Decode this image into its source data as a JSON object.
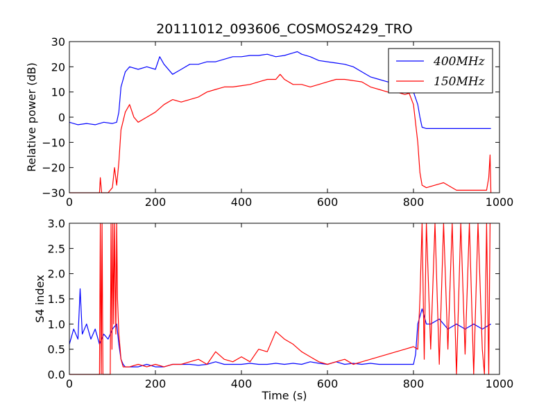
{
  "figure": {
    "title": "20111012_093606_COSMOS2429_TRO",
    "colors": {
      "series_400": "#0000ff",
      "series_150": "#ff0000",
      "axes": "#000000"
    }
  },
  "chart_data": [
    {
      "type": "line",
      "title": "20111012_093606_COSMOS2429_TRO",
      "xlabel": "",
      "ylabel": "Relative power (dB)",
      "xlim": [
        0,
        1000
      ],
      "ylim": [
        -30,
        30
      ],
      "xticks": [
        "0",
        "200",
        "400",
        "600",
        "800",
        "1000"
      ],
      "yticks": [
        "−30",
        "−20",
        "−10",
        "0",
        "10",
        "20",
        "30"
      ],
      "grid": false,
      "legend": "top-right",
      "series": [
        {
          "name": "400MHz",
          "color": "#0000ff",
          "x": [
            0,
            20,
            40,
            60,
            80,
            100,
            110,
            115,
            120,
            130,
            140,
            160,
            180,
            200,
            210,
            220,
            240,
            260,
            280,
            300,
            320,
            340,
            360,
            380,
            400,
            420,
            440,
            460,
            480,
            500,
            520,
            530,
            540,
            560,
            580,
            600,
            620,
            640,
            660,
            680,
            700,
            720,
            740,
            760,
            780,
            800,
            810,
            815,
            820,
            830,
            850,
            880,
            920,
            950,
            980
          ],
          "y": [
            -2,
            -3,
            -2.5,
            -3,
            -2,
            -2.5,
            -2,
            2,
            12,
            18,
            20,
            19,
            20,
            19,
            24,
            21,
            17,
            19,
            21,
            21,
            22,
            22,
            23,
            24,
            24,
            24.5,
            24.5,
            25,
            24,
            24.5,
            25.5,
            26,
            25,
            24,
            22.5,
            22,
            21.5,
            21,
            20,
            18,
            16,
            15,
            14,
            13,
            12,
            10,
            5,
            0,
            -4,
            -4.5,
            -4.5,
            -4.5,
            -4.5,
            -4.5,
            -4.5
          ]
        },
        {
          "name": "150MHz",
          "color": "#ff0000",
          "x": [
            0,
            60,
            70,
            72,
            75,
            90,
            100,
            105,
            110,
            115,
            120,
            130,
            140,
            150,
            160,
            180,
            200,
            220,
            240,
            260,
            280,
            300,
            320,
            340,
            360,
            380,
            400,
            420,
            440,
            460,
            480,
            490,
            500,
            520,
            540,
            560,
            580,
            600,
            620,
            640,
            660,
            680,
            700,
            720,
            740,
            760,
            780,
            790,
            800,
            810,
            815,
            820,
            830,
            850,
            870,
            900,
            930,
            960,
            970,
            975,
            978,
            980
          ],
          "y": [
            -30,
            -30,
            -30,
            -24,
            -30,
            -30,
            -28,
            -20,
            -27,
            -18,
            -5,
            2,
            5,
            0,
            -2,
            0,
            2,
            5,
            7,
            6,
            7,
            8,
            10,
            11,
            12,
            12,
            12.5,
            13,
            14,
            15,
            15,
            17,
            15,
            13,
            13,
            12,
            13,
            14,
            15,
            15,
            14.5,
            14,
            12,
            11,
            10,
            10,
            9,
            9.5,
            5,
            -10,
            -22,
            -27,
            -28,
            -27,
            -26,
            -29,
            -29,
            -29,
            -29,
            -24,
            -15,
            -30
          ]
        }
      ]
    },
    {
      "type": "line",
      "title": "",
      "xlabel": "Time (s)",
      "ylabel": "S4 index",
      "xlim": [
        0,
        1000
      ],
      "ylim": [
        0,
        3
      ],
      "xticks": [
        "0",
        "200",
        "400",
        "600",
        "800",
        "1000"
      ],
      "yticks": [
        "0.0",
        "0.5",
        "1.0",
        "1.5",
        "2.0",
        "2.5",
        "3.0"
      ],
      "grid": false,
      "legend": "none",
      "series": [
        {
          "name": "400MHz",
          "color": "#0000ff",
          "x": [
            0,
            10,
            20,
            25,
            30,
            40,
            50,
            60,
            70,
            80,
            90,
            100,
            110,
            115,
            120,
            125,
            130,
            140,
            160,
            180,
            200,
            220,
            240,
            260,
            280,
            300,
            320,
            340,
            360,
            380,
            400,
            420,
            440,
            460,
            480,
            500,
            520,
            540,
            560,
            580,
            600,
            620,
            640,
            660,
            680,
            700,
            720,
            740,
            760,
            780,
            800,
            805,
            810,
            820,
            830,
            840,
            860,
            880,
            900,
            920,
            940,
            960,
            980
          ],
          "y": [
            0.6,
            0.9,
            0.7,
            1.7,
            0.8,
            1.0,
            0.7,
            0.9,
            0.6,
            0.8,
            0.7,
            0.9,
            1.0,
            0.6,
            0.3,
            0.2,
            0.15,
            0.15,
            0.15,
            0.2,
            0.15,
            0.15,
            0.2,
            0.2,
            0.2,
            0.18,
            0.2,
            0.25,
            0.2,
            0.2,
            0.2,
            0.22,
            0.2,
            0.2,
            0.22,
            0.2,
            0.22,
            0.2,
            0.25,
            0.22,
            0.2,
            0.25,
            0.2,
            0.22,
            0.2,
            0.22,
            0.2,
            0.2,
            0.2,
            0.2,
            0.2,
            0.4,
            1.0,
            1.3,
            1.0,
            1.0,
            1.1,
            0.9,
            1.0,
            0.9,
            1.0,
            0.9,
            1.0
          ]
        },
        {
          "name": "150MHz",
          "color": "#ff0000",
          "x": [
            0,
            70,
            72,
            74,
            76,
            78,
            80,
            95,
            97,
            99,
            101,
            103,
            105,
            108,
            110,
            112,
            115,
            118,
            120,
            125,
            130,
            140,
            160,
            180,
            200,
            220,
            240,
            260,
            280,
            300,
            320,
            340,
            360,
            380,
            400,
            420,
            440,
            460,
            480,
            500,
            520,
            540,
            560,
            580,
            600,
            620,
            640,
            660,
            680,
            700,
            720,
            740,
            760,
            780,
            800,
            810,
            815,
            820,
            825,
            830,
            840,
            850,
            860,
            870,
            880,
            890,
            900,
            910,
            920,
            930,
            940,
            950,
            960,
            965,
            970,
            975,
            978
          ],
          "y": [
            0.0,
            0.0,
            3.0,
            0.0,
            3.0,
            0.0,
            0.0,
            0.0,
            3.0,
            0.5,
            3.0,
            1.0,
            3.0,
            0.8,
            3.0,
            1.5,
            0.8,
            0.5,
            0.3,
            0.15,
            0.15,
            0.15,
            0.2,
            0.15,
            0.2,
            0.15,
            0.2,
            0.2,
            0.25,
            0.3,
            0.2,
            0.45,
            0.3,
            0.25,
            0.35,
            0.25,
            0.5,
            0.45,
            0.85,
            0.7,
            0.6,
            0.45,
            0.35,
            0.25,
            0.2,
            0.25,
            0.3,
            0.2,
            0.25,
            0.3,
            0.35,
            0.4,
            0.45,
            0.5,
            0.55,
            0.5,
            1.5,
            3.0,
            0.3,
            3.0,
            0.5,
            3.0,
            0.2,
            3.0,
            0.5,
            3.0,
            0.0,
            3.0,
            0.4,
            3.0,
            0.0,
            3.0,
            0.5,
            0.0,
            3.0,
            0.0,
            3.0
          ]
        }
      ]
    }
  ]
}
